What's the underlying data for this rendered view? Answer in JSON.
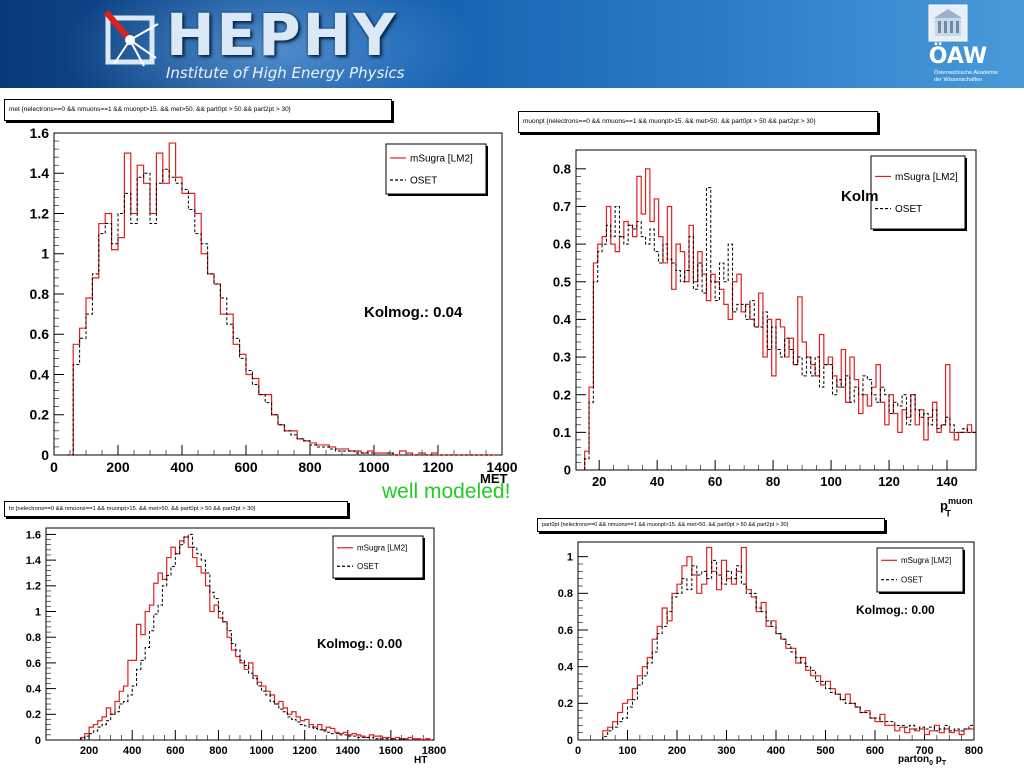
{
  "header": {
    "logo_text": "HEPHY",
    "logo_subtitle": "Institute of High Energy Physics",
    "partner_logo": "ÖAW",
    "partner_subtitle_1": "Österreichische Akademie",
    "partner_subtitle_2": "der Wissenschaften"
  },
  "annotation": "well modeled!",
  "colors": {
    "msugra": "#e02020",
    "oset": "#000000",
    "banner": "#1560b0",
    "annotation": "#22cc22"
  },
  "chart_data": [
    {
      "id": "met",
      "type": "line",
      "selection": "met {nelectrons==0 && nmuons==1 && muonpt>15. && met>50. && part0pt > 50 && part2pt > 30}",
      "xlabel": "MET",
      "xlabel_sub": "",
      "xlabel_sup": "",
      "xlim": [
        0,
        1400
      ],
      "ylim": [
        0,
        1.6
      ],
      "xticks": [
        0,
        200,
        400,
        600,
        800,
        1000,
        1200,
        1400
      ],
      "yticks": [
        0,
        0.2,
        0.4,
        0.6,
        0.8,
        1,
        1.2,
        1.4,
        1.6
      ],
      "ytick_labels": [
        "0",
        "0.2",
        "0.4",
        "0.6",
        "0.8",
        "1",
        "1.2",
        "1.4",
        "1.6"
      ],
      "legend": [
        "mSugra [LM2]",
        "OSET"
      ],
      "kolmog": "Kolmog.: 0.04",
      "bin_width": 20,
      "x_start": 40,
      "series": [
        {
          "name": "mSugra [LM2]",
          "values": [
            0.0,
            0.55,
            0.63,
            0.78,
            0.88,
            1.15,
            1.2,
            1.02,
            1.08,
            1.5,
            1.2,
            1.44,
            1.35,
            1.2,
            1.5,
            1.35,
            1.55,
            1.38,
            1.3,
            1.3,
            1.2,
            1.0,
            0.9,
            0.85,
            0.7,
            0.7,
            0.55,
            0.5,
            0.4,
            0.38,
            0.3,
            0.3,
            0.2,
            0.15,
            0.12,
            0.12,
            0.08,
            0.07,
            0.06,
            0.05,
            0.05,
            0.04,
            0.03,
            0.03,
            0.02,
            0.02,
            0.01,
            0.02,
            0.01,
            0.01,
            0.01,
            0.0,
            0.02,
            0.01,
            0.0,
            0.01,
            0.0,
            0.01,
            0.0,
            0.0,
            0.0,
            0.0,
            0.0,
            0.0,
            0.0,
            0.0,
            0.0
          ]
        },
        {
          "name": "OSET",
          "values": [
            0.0,
            0.45,
            0.58,
            0.7,
            0.9,
            1.1,
            1.15,
            1.05,
            1.2,
            1.3,
            1.15,
            1.38,
            1.4,
            1.15,
            1.35,
            1.42,
            1.38,
            1.35,
            1.32,
            1.22,
            1.1,
            1.05,
            0.9,
            0.85,
            0.78,
            0.65,
            0.58,
            0.48,
            0.42,
            0.35,
            0.3,
            0.26,
            0.2,
            0.15,
            0.12,
            0.1,
            0.08,
            0.07,
            0.05,
            0.04,
            0.04,
            0.03,
            0.02,
            0.02,
            0.02,
            0.01,
            0.01,
            0.01,
            0.0,
            0.0,
            0.01,
            0.0,
            0.0,
            0.0,
            0.0,
            0.0,
            0.0,
            0.0,
            0.0,
            0.0,
            0.0,
            0.0,
            0.0,
            0.0,
            0.0,
            0.0,
            0.0
          ]
        }
      ]
    },
    {
      "id": "muonpt",
      "type": "line",
      "selection": "muonpt {nelectrons==0 && nmuons==1 && muonpt>15. && met>50. && part0pt > 50 && part2pt > 30}",
      "xlabel": "p",
      "xlabel_sub": "T",
      "xlabel_sup": "muon",
      "xlim": [
        12,
        150
      ],
      "ylim": [
        0,
        0.85
      ],
      "xticks": [
        20,
        40,
        60,
        80,
        100,
        120,
        140
      ],
      "yticks": [
        0,
        0.1,
        0.2,
        0.3,
        0.4,
        0.5,
        0.6,
        0.7,
        0.8
      ],
      "ytick_labels": [
        "0",
        "0.1",
        "0.2",
        "0.3",
        "0.4",
        "0.5",
        "0.6",
        "0.7",
        "0.8"
      ],
      "legend": [
        "mSugra [LM2]",
        "OSET"
      ],
      "kolmog": "Kolm",
      "bin_width": 1.5,
      "x_start": 15,
      "series": [
        {
          "name": "mSugra [LM2]",
          "values": [
            0.05,
            0.22,
            0.55,
            0.6,
            0.62,
            0.7,
            0.6,
            0.58,
            0.62,
            0.66,
            0.65,
            0.62,
            0.78,
            0.68,
            0.8,
            0.66,
            0.72,
            0.62,
            0.55,
            0.7,
            0.48,
            0.6,
            0.58,
            0.5,
            0.65,
            0.5,
            0.58,
            0.52,
            0.45,
            0.52,
            0.5,
            0.48,
            0.44,
            0.4,
            0.5,
            0.52,
            0.42,
            0.44,
            0.4,
            0.38,
            0.47,
            0.3,
            0.4,
            0.25,
            0.4,
            0.38,
            0.3,
            0.35,
            0.28,
            0.46,
            0.34,
            0.3,
            0.28,
            0.25,
            0.36,
            0.28,
            0.3,
            0.25,
            0.22,
            0.32,
            0.18,
            0.3,
            0.24,
            0.15,
            0.2,
            0.17,
            0.22,
            0.28,
            0.18,
            0.12,
            0.2,
            0.15,
            0.1,
            0.16,
            0.14,
            0.2,
            0.12,
            0.16,
            0.08,
            0.14,
            0.18,
            0.1,
            0.12,
            0.28,
            0.1,
            0.08,
            0.1,
            0.1,
            0.12,
            0.1,
            0.12
          ]
        },
        {
          "name": "OSET",
          "values": [
            0.03,
            0.18,
            0.5,
            0.58,
            0.6,
            0.65,
            0.62,
            0.7,
            0.62,
            0.6,
            0.65,
            0.64,
            0.66,
            0.62,
            0.6,
            0.64,
            0.58,
            0.55,
            0.6,
            0.56,
            0.55,
            0.53,
            0.5,
            0.53,
            0.62,
            0.48,
            0.55,
            0.47,
            0.75,
            0.5,
            0.45,
            0.55,
            0.5,
            0.6,
            0.42,
            0.44,
            0.44,
            0.4,
            0.45,
            0.38,
            0.38,
            0.42,
            0.32,
            0.38,
            0.32,
            0.3,
            0.35,
            0.32,
            0.28,
            0.3,
            0.25,
            0.3,
            0.25,
            0.3,
            0.22,
            0.28,
            0.28,
            0.2,
            0.24,
            0.22,
            0.25,
            0.18,
            0.22,
            0.2,
            0.25,
            0.24,
            0.2,
            0.18,
            0.22,
            0.2,
            0.15,
            0.18,
            0.17,
            0.2,
            0.12,
            0.2,
            0.16,
            0.14,
            0.15,
            0.12,
            0.16,
            0.11,
            0.12,
            0.14,
            0.12,
            0.1,
            0.1,
            0.11,
            0.1,
            0.1,
            0.1
          ]
        }
      ]
    },
    {
      "id": "ht",
      "type": "line",
      "selection": "ht {nelectrons==0 && nmuons==1 && muonpt>15. && met>50. && part0pt > 50 && part2pt > 30}",
      "xlabel": "HT",
      "xlabel_sub": "",
      "xlabel_sup": "",
      "xlim": [
        0,
        1800
      ],
      "ylim": [
        0,
        1.65
      ],
      "xticks": [
        200,
        400,
        600,
        800,
        1000,
        1200,
        1400,
        1600,
        1800
      ],
      "yticks": [
        0,
        0.2,
        0.4,
        0.6,
        0.8,
        1,
        1.2,
        1.4,
        1.6
      ],
      "ytick_labels": [
        "0",
        "0.2",
        "0.4",
        "0.6",
        "0.8",
        "1",
        "1.2",
        "1.4",
        "1.6"
      ],
      "legend": [
        "mSugra [LM2]",
        "OSET"
      ],
      "kolmog": "Kolmog.: 0.00",
      "bin_width": 20,
      "x_start": 160,
      "series": [
        {
          "name": "mSugra [LM2]",
          "values": [
            0.02,
            0.05,
            0.1,
            0.12,
            0.15,
            0.18,
            0.25,
            0.2,
            0.3,
            0.38,
            0.42,
            0.62,
            0.62,
            0.9,
            0.82,
            1.0,
            1.05,
            1.22,
            1.3,
            1.25,
            1.42,
            1.5,
            1.45,
            1.55,
            1.58,
            1.5,
            1.42,
            1.35,
            1.3,
            1.2,
            1.0,
            1.05,
            0.95,
            0.92,
            0.8,
            0.7,
            0.65,
            0.6,
            0.55,
            0.6,
            0.5,
            0.45,
            0.42,
            0.38,
            0.35,
            0.28,
            0.3,
            0.25,
            0.2,
            0.22,
            0.18,
            0.15,
            0.16,
            0.12,
            0.1,
            0.12,
            0.08,
            0.1,
            0.09,
            0.06,
            0.05,
            0.06,
            0.04,
            0.05,
            0.04,
            0.03,
            0.02,
            0.04,
            0.03,
            0.03,
            0.02,
            0.02,
            0.01,
            0.02,
            0.01,
            0.01,
            0.02,
            0.01,
            0.01,
            0.0,
            0.01,
            0.0
          ]
        },
        {
          "name": "OSET",
          "values": [
            0.01,
            0.03,
            0.05,
            0.07,
            0.1,
            0.12,
            0.15,
            0.2,
            0.22,
            0.28,
            0.3,
            0.35,
            0.42,
            0.55,
            0.62,
            0.72,
            0.85,
            0.98,
            1.05,
            1.2,
            1.28,
            1.35,
            1.45,
            1.52,
            1.58,
            1.6,
            1.5,
            1.45,
            1.4,
            1.3,
            1.15,
            1.1,
            1.0,
            0.92,
            0.85,
            0.75,
            0.7,
            0.62,
            0.58,
            0.52,
            0.48,
            0.42,
            0.38,
            0.35,
            0.3,
            0.28,
            0.24,
            0.22,
            0.18,
            0.16,
            0.14,
            0.12,
            0.11,
            0.1,
            0.09,
            0.08,
            0.07,
            0.06,
            0.05,
            0.05,
            0.04,
            0.04,
            0.03,
            0.03,
            0.02,
            0.02,
            0.02,
            0.02,
            0.01,
            0.01,
            0.01,
            0.01,
            0.01,
            0.0,
            0.01,
            0.0,
            0.0,
            0.0,
            0.0,
            0.0,
            0.0,
            0.0
          ]
        }
      ]
    },
    {
      "id": "part0pt",
      "type": "line",
      "selection": "part0pt {nelectrons==0 && nmuons==1 && muonpt>15. && met>50. && part0pt > 50 && part2pt > 30}",
      "xlabel": "parton",
      "xlabel_sub": "0",
      "xlabel_tail": " p",
      "xlabel_tail_sub": "T",
      "xlim": [
        0,
        800
      ],
      "ylim": [
        0,
        1.08
      ],
      "xticks": [
        0,
        100,
        200,
        300,
        400,
        500,
        600,
        700,
        800
      ],
      "yticks": [
        0,
        0.2,
        0.4,
        0.6,
        0.8,
        1
      ],
      "ytick_labels": [
        "0",
        "0.2",
        "0.4",
        "0.6",
        "0.8",
        "1"
      ],
      "legend": [
        "mSugra [LM2]",
        "OSET"
      ],
      "kolmog": "Kolmog.: 0.00",
      "bin_width": 10,
      "x_start": 50,
      "series": [
        {
          "name": "mSugra [LM2]",
          "values": [
            0.05,
            0.07,
            0.1,
            0.15,
            0.2,
            0.22,
            0.28,
            0.35,
            0.4,
            0.45,
            0.55,
            0.62,
            0.72,
            0.65,
            0.8,
            0.85,
            0.95,
            1.0,
            0.9,
            0.8,
            0.85,
            1.05,
            0.92,
            0.82,
            0.98,
            0.88,
            0.85,
            0.92,
            1.05,
            0.82,
            0.78,
            0.7,
            0.75,
            0.62,
            0.65,
            0.58,
            0.55,
            0.5,
            0.5,
            0.42,
            0.45,
            0.38,
            0.35,
            0.35,
            0.3,
            0.32,
            0.28,
            0.25,
            0.22,
            0.25,
            0.2,
            0.18,
            0.15,
            0.16,
            0.12,
            0.1,
            0.14,
            0.08,
            0.08,
            0.05,
            0.07,
            0.04,
            0.06,
            0.05,
            0.06,
            0.03,
            0.05,
            0.08,
            0.04,
            0.06,
            0.04,
            0.05,
            0.03,
            0.06,
            0.06
          ]
        },
        {
          "name": "OSET",
          "values": [
            0.02,
            0.05,
            0.07,
            0.1,
            0.12,
            0.18,
            0.22,
            0.3,
            0.35,
            0.42,
            0.48,
            0.58,
            0.62,
            0.7,
            0.78,
            0.8,
            0.88,
            0.82,
            0.95,
            0.9,
            0.92,
            0.88,
            0.98,
            0.9,
            0.85,
            0.92,
            0.88,
            0.95,
            0.85,
            0.8,
            0.8,
            0.72,
            0.7,
            0.65,
            0.62,
            0.58,
            0.55,
            0.52,
            0.48,
            0.45,
            0.42,
            0.4,
            0.38,
            0.32,
            0.32,
            0.28,
            0.26,
            0.25,
            0.22,
            0.2,
            0.2,
            0.18,
            0.15,
            0.15,
            0.12,
            0.12,
            0.1,
            0.1,
            0.1,
            0.08,
            0.08,
            0.07,
            0.08,
            0.06,
            0.07,
            0.06,
            0.07,
            0.05,
            0.06,
            0.08,
            0.05,
            0.06,
            0.05,
            0.06,
            0.08
          ]
        }
      ]
    }
  ]
}
